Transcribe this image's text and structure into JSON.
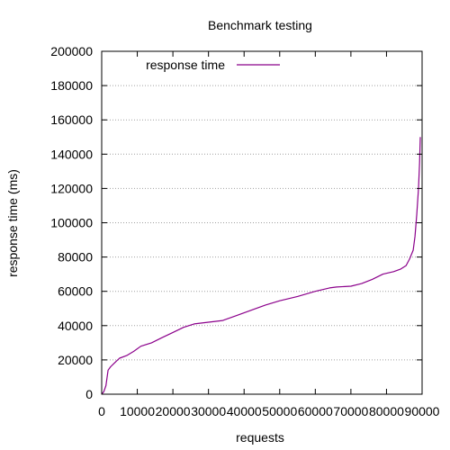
{
  "chart_data": {
    "type": "line",
    "title": "Benchmark testing",
    "xlabel": "requests",
    "ylabel": "response time (ms)",
    "xlim": [
      0,
      90000
    ],
    "ylim": [
      0,
      200000
    ],
    "xticks": [
      0,
      10000,
      20000,
      30000,
      40000,
      50000,
      60000,
      70000,
      80000,
      90000
    ],
    "xtick_labels": [
      "0",
      "10000",
      "20000",
      "30000",
      "40000",
      "50000",
      "60000",
      "70000",
      "80000",
      "90000"
    ],
    "yticks": [
      0,
      20000,
      40000,
      60000,
      80000,
      100000,
      120000,
      140000,
      160000,
      180000,
      200000
    ],
    "ytick_labels": [
      "0",
      "20000",
      "40000",
      "60000",
      "80000",
      "100000",
      "120000",
      "140000",
      "160000",
      "180000",
      "200000"
    ],
    "grid": true,
    "legend_position": "top-left",
    "series": [
      {
        "name": "response time",
        "color": "#8b008b",
        "x": [
          0,
          600,
          1200,
          1800,
          2500,
          3500,
          5000,
          7000,
          9000,
          11000,
          14000,
          17000,
          20000,
          23000,
          26000,
          30000,
          34000,
          38000,
          42000,
          46000,
          50000,
          55000,
          60000,
          64000,
          66000,
          70000,
          73000,
          76000,
          79000,
          82000,
          84000,
          85500,
          86500,
          87500,
          88000,
          88500,
          89000,
          89300,
          89500
        ],
        "y": [
          0,
          1500,
          5000,
          14000,
          16000,
          18000,
          21000,
          22500,
          25000,
          28000,
          30000,
          33000,
          36000,
          39000,
          41000,
          42000,
          43000,
          46000,
          49000,
          52000,
          54500,
          57000,
          60000,
          62000,
          62500,
          63000,
          64500,
          67000,
          70000,
          71500,
          73000,
          75000,
          79000,
          84000,
          92000,
          105000,
          120000,
          135000,
          150000
        ]
      }
    ]
  }
}
